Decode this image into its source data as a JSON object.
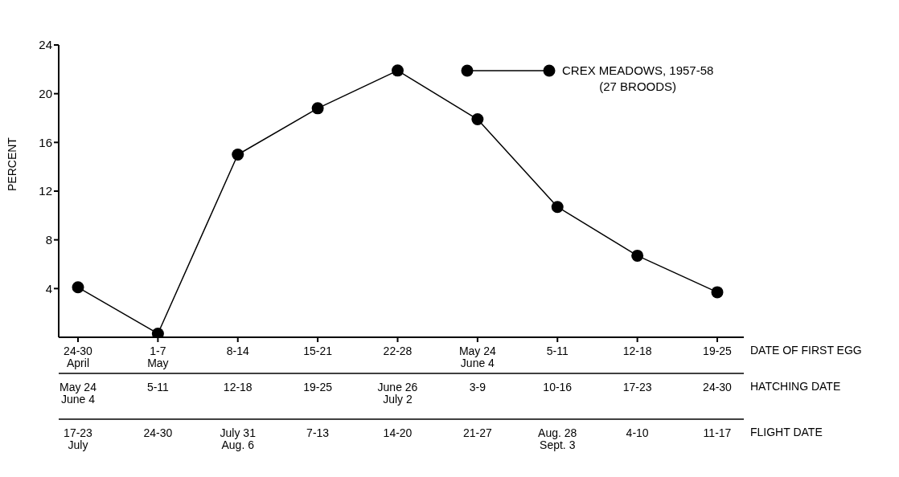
{
  "chart_data": {
    "type": "line",
    "ylabel": "PERCENT",
    "xlabel": "DATE OF FIRST EGG",
    "categories": [
      "24-30\nApril",
      "1-7\nMay",
      "8-14",
      "15-21",
      "22-28",
      "May 24\nJune 4",
      "5-11",
      "12-18",
      "19-25"
    ],
    "series": [
      {
        "name": "CREX MEADOWS, 1957-58\n(27 BROODS)",
        "color": "#000000",
        "values": [
          4.1,
          0.3,
          15.0,
          18.8,
          21.9,
          17.9,
          10.7,
          6.7,
          3.7
        ]
      }
    ],
    "ylim": [
      0,
      24
    ],
    "yticks": [
      4,
      8,
      12,
      16,
      20,
      24
    ],
    "grid": false,
    "legend": "top right",
    "marker": "circle",
    "line_style": "solid",
    "annotations": [
      "May 24\nJune 4",
      "5-11",
      "12-18",
      "19-25",
      "June 26\nJuly 2",
      "3-9",
      "10-16",
      "17-23",
      "24-30",
      "HATCHING DATE",
      "17-23\nJuly",
      "24-30",
      "July 31\nAug. 6",
      "7-13",
      "14-20",
      "21-27",
      "Aug. 28\nSept. 3",
      "4-10",
      "11-17",
      "FLIGHT DATE"
    ]
  }
}
